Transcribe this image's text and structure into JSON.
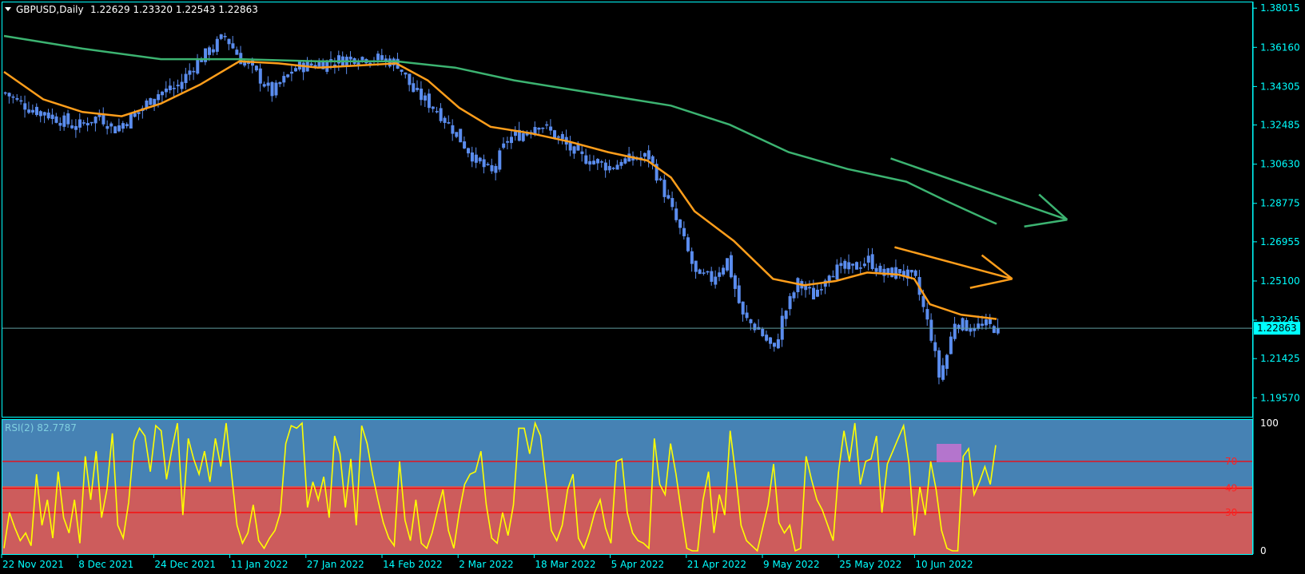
{
  "header": {
    "symbol_label": "GBPUSD,Daily",
    "ohlc": "1.22629 1.23320 1.22543 1.22863"
  },
  "rsi_header": "RSI(2) 82.7787",
  "current_price_label": "1.22863",
  "colors": {
    "background": "#000000",
    "axis": "#00ffff",
    "bull_candle": "#5b8def",
    "bear_candle": "#5b8def",
    "ma_fast": "#ff9e1b",
    "ma_slow": "#3cb371",
    "rsi_line": "#ffff00",
    "rsi_upper_zone": "#4682b4",
    "rsi_lower_zone": "#cd5c5c",
    "rsi_levels": "#ff0000",
    "highlight_box": "#da70d6"
  },
  "chart_data": {
    "type": "candlestick",
    "symbol": "GBPUSD",
    "timeframe": "Daily",
    "y_ticks": [
      "1.38015",
      "1.36160",
      "1.34305",
      "1.32485",
      "1.30630",
      "1.28775",
      "1.26955",
      "1.25100",
      "1.23245",
      "1.21425",
      "1.19570"
    ],
    "ylim": [
      1.1875,
      1.3825
    ],
    "x_ticks": [
      "22 Nov 2021",
      "8 Dec 2021",
      "24 Dec 2021",
      "11 Jan 2022",
      "27 Jan 2022",
      "14 Feb 2022",
      "2 Mar 2022",
      "18 Mar 2022",
      "5 Apr 2022",
      "21 Apr 2022",
      "9 May 2022",
      "25 May 2022",
      "10 Jun 2022"
    ],
    "current_price": 1.22863,
    "last_bar": {
      "open": 1.22629,
      "high": 1.2332,
      "low": 1.22543,
      "close": 1.22863
    },
    "close_path": [
      [
        0,
        1.34
      ],
      [
        6,
        1.333
      ],
      [
        12,
        1.329
      ],
      [
        18,
        1.324
      ],
      [
        24,
        1.329
      ],
      [
        28,
        1.323
      ],
      [
        34,
        1.331
      ],
      [
        38,
        1.339
      ],
      [
        44,
        1.343
      ],
      [
        48,
        1.353
      ],
      [
        52,
        1.36
      ],
      [
        56,
        1.367
      ],
      [
        60,
        1.356
      ],
      [
        64,
        1.349
      ],
      [
        68,
        1.34
      ],
      [
        74,
        1.352
      ],
      [
        80,
        1.354
      ],
      [
        86,
        1.356
      ],
      [
        90,
        1.357
      ],
      [
        96,
        1.356
      ],
      [
        100,
        1.354
      ],
      [
        104,
        1.341
      ],
      [
        110,
        1.332
      ],
      [
        114,
        1.323
      ],
      [
        120,
        1.308
      ],
      [
        124,
        1.302
      ],
      [
        128,
        1.318
      ],
      [
        132,
        1.321
      ],
      [
        136,
        1.326
      ],
      [
        142,
        1.317
      ],
      [
        146,
        1.31
      ],
      [
        150,
        1.308
      ],
      [
        154,
        1.305
      ],
      [
        158,
        1.308
      ],
      [
        164,
        1.31
      ],
      [
        168,
        1.293
      ],
      [
        172,
        1.275
      ],
      [
        176,
        1.254
      ],
      [
        180,
        1.252
      ],
      [
        184,
        1.261
      ],
      [
        188,
        1.234
      ],
      [
        192,
        1.228
      ],
      [
        196,
        1.218
      ],
      [
        198,
        1.233
      ],
      [
        202,
        1.25
      ],
      [
        206,
        1.244
      ],
      [
        210,
        1.256
      ],
      [
        216,
        1.257
      ],
      [
        220,
        1.261
      ],
      [
        224,
        1.254
      ],
      [
        228,
        1.256
      ],
      [
        232,
        1.251
      ],
      [
        236,
        1.225
      ],
      [
        238,
        1.206
      ],
      [
        240,
        1.216
      ],
      [
        242,
        1.232
      ],
      [
        246,
        1.229
      ],
      [
        250,
        1.23
      ],
      [
        253,
        1.2286
      ]
    ],
    "ma_fast_path": [
      [
        0,
        1.35
      ],
      [
        10,
        1.337
      ],
      [
        20,
        1.331
      ],
      [
        30,
        1.329
      ],
      [
        40,
        1.335
      ],
      [
        50,
        1.344
      ],
      [
        60,
        1.355
      ],
      [
        70,
        1.354
      ],
      [
        80,
        1.352
      ],
      [
        90,
        1.353
      ],
      [
        100,
        1.354
      ],
      [
        108,
        1.346
      ],
      [
        116,
        1.333
      ],
      [
        124,
        1.324
      ],
      [
        134,
        1.321
      ],
      [
        144,
        1.317
      ],
      [
        154,
        1.312
      ],
      [
        164,
        1.308
      ],
      [
        170,
        1.3
      ],
      [
        176,
        1.284
      ],
      [
        186,
        1.27
      ],
      [
        196,
        1.252
      ],
      [
        204,
        1.249
      ],
      [
        212,
        1.251
      ],
      [
        220,
        1.255
      ],
      [
        228,
        1.254
      ],
      [
        232,
        1.252
      ],
      [
        236,
        1.24
      ],
      [
        244,
        1.235
      ],
      [
        253,
        1.233
      ]
    ],
    "ma_slow_path": [
      [
        0,
        1.367
      ],
      [
        20,
        1.361
      ],
      [
        40,
        1.356
      ],
      [
        60,
        1.356
      ],
      [
        80,
        1.355
      ],
      [
        100,
        1.355
      ],
      [
        115,
        1.352
      ],
      [
        130,
        1.346
      ],
      [
        150,
        1.34
      ],
      [
        170,
        1.334
      ],
      [
        185,
        1.325
      ],
      [
        200,
        1.312
      ],
      [
        215,
        1.304
      ],
      [
        230,
        1.298
      ],
      [
        240,
        1.289
      ],
      [
        253,
        1.278
      ]
    ],
    "trend_arrows": [
      {
        "color": "#3cb371",
        "from": [
          226,
          1.309
        ],
        "to": [
          271,
          1.28
        ]
      },
      {
        "color": "#ff9e1b",
        "from": [
          227,
          1.267
        ],
        "to": [
          257,
          1.252
        ]
      }
    ],
    "rsi": {
      "name": "RSI(2)",
      "last_value": 82.7787,
      "levels": [
        70,
        49,
        30
      ],
      "scale": [
        100,
        0
      ],
      "values": [
        2,
        30,
        18,
        8,
        14,
        4,
        60,
        20,
        40,
        10,
        62,
        26,
        14,
        40,
        6,
        74,
        40,
        78,
        26,
        48,
        92,
        20,
        10,
        38,
        86,
        96,
        90,
        62,
        98,
        94,
        56,
        80,
        100,
        28,
        88,
        72,
        60,
        78,
        54,
        88,
        66,
        100,
        60,
        20,
        6,
        14,
        36,
        8,
        2,
        10,
        16,
        30,
        84,
        98,
        96,
        100,
        34,
        54,
        40,
        58,
        26,
        90,
        76,
        34,
        72,
        20,
        98,
        84,
        60,
        40,
        22,
        10,
        4,
        70,
        24,
        8,
        40,
        6,
        2,
        14,
        32,
        48,
        16,
        2,
        30,
        52,
        60,
        62,
        78,
        36,
        10,
        6,
        30,
        12,
        36,
        96,
        96,
        76,
        100,
        90,
        54,
        16,
        8,
        20,
        48,
        60,
        10,
        2,
        14,
        30,
        40,
        18,
        6,
        70,
        72,
        30,
        14,
        8,
        6,
        2,
        88,
        52,
        44,
        84,
        60,
        30,
        2,
        0,
        0,
        40,
        62,
        14,
        44,
        28,
        94,
        60,
        20,
        8,
        4,
        0,
        18,
        36,
        68,
        22,
        14,
        20,
        0,
        2,
        74,
        56,
        40,
        32,
        20,
        8,
        62,
        94,
        70,
        100,
        52,
        70,
        72,
        90,
        30,
        68,
        78,
        88,
        98,
        68,
        12,
        50,
        28,
        70,
        48,
        16,
        2,
        0,
        0,
        74,
        80,
        44,
        54,
        66,
        52,
        82.78
      ]
    }
  }
}
